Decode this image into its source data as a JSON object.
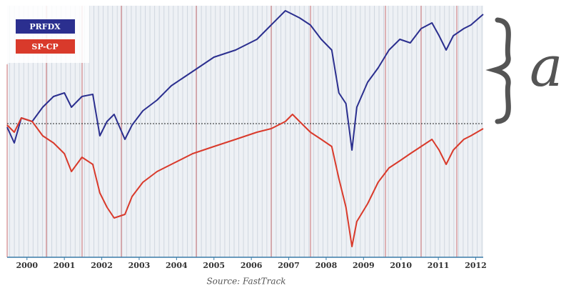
{
  "chart_data": {
    "type": "line",
    "source": "Source: FastTrack",
    "annotation": "a",
    "x": [
      1999.47,
      1999.66,
      1999.85,
      2000.14,
      2000.42,
      2000.71,
      2001.0,
      2001.19,
      2001.47,
      2001.76,
      2001.95,
      2002.14,
      2002.33,
      2002.62,
      2002.81,
      2003.1,
      2003.48,
      2003.86,
      2004.43,
      2005.0,
      2005.58,
      2006.15,
      2006.53,
      2006.91,
      2007.1,
      2007.29,
      2007.58,
      2007.87,
      2008.15,
      2008.34,
      2008.53,
      2008.69,
      2008.82,
      2009.11,
      2009.39,
      2009.68,
      2009.97,
      2010.25,
      2010.54,
      2010.83,
      2011.02,
      2011.21,
      2011.4,
      2011.68,
      2011.87,
      2012.2
    ],
    "series": [
      {
        "name": "PRFDX",
        "color": "#2b2f8f",
        "values": [
          182,
          160,
          195,
          190,
          210,
          225,
          230,
          210,
          225,
          228,
          170,
          190,
          200,
          165,
          185,
          205,
          220,
          240,
          260,
          280,
          290,
          305,
          325,
          345,
          340,
          335,
          325,
          305,
          290,
          230,
          215,
          150,
          210,
          245,
          265,
          290,
          305,
          300,
          320,
          328,
          310,
          290,
          310,
          320,
          325,
          340
        ]
      },
      {
        "name": "SP-CP",
        "color": "#d93a2b",
        "values": [
          185,
          175,
          195,
          190,
          170,
          160,
          145,
          120,
          140,
          130,
          90,
          70,
          55,
          60,
          85,
          105,
          120,
          130,
          145,
          155,
          165,
          175,
          180,
          190,
          200,
          190,
          175,
          165,
          155,
          110,
          70,
          15,
          50,
          75,
          105,
          125,
          135,
          145,
          155,
          165,
          150,
          130,
          150,
          165,
          170,
          180
        ]
      }
    ],
    "reference_line": 187,
    "xlim": [
      1999.47,
      2012.2
    ],
    "xticks": [
      2000,
      2001,
      2002,
      2003,
      2004,
      2005,
      2006,
      2007,
      2008,
      2009,
      2010,
      2011,
      2012
    ],
    "ylim": [
      0,
      352
    ]
  }
}
